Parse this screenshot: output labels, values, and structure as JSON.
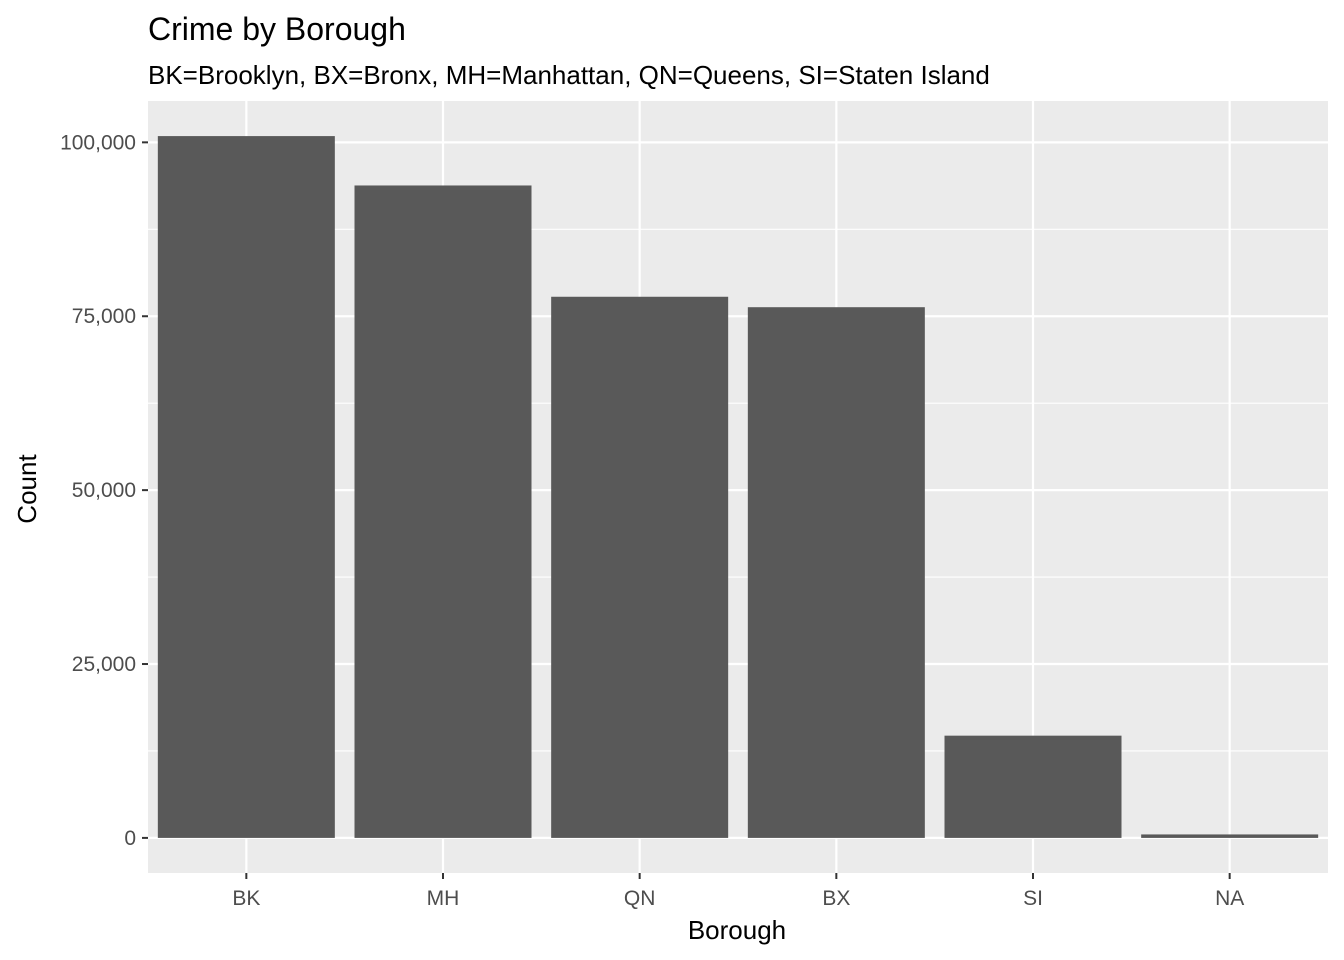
{
  "chart_data": {
    "type": "bar",
    "title": "Crime by Borough",
    "subtitle": "BK=Brooklyn, BX=Bronx, MH=Manhattan, QN=Queens, SI=Staten Island",
    "xlabel": "Borough",
    "ylabel": "Count",
    "categories": [
      "BK",
      "MH",
      "QN",
      "BX",
      "SI",
      "NA"
    ],
    "values": [
      100900,
      93800,
      77800,
      76300,
      14700,
      500
    ],
    "ylim": [
      -5045,
      105945
    ],
    "yticks": [
      0,
      25000,
      50000,
      75000,
      100000
    ],
    "ytick_labels": [
      "0",
      "25,000",
      "50,000",
      "75,000",
      "100,000"
    ],
    "grid": true,
    "colors": {
      "panel": "#ebebeb",
      "grid": "#ffffff",
      "bar": "#595959",
      "tick_text": "#4d4d4d",
      "tick_mark": "#333333"
    }
  }
}
